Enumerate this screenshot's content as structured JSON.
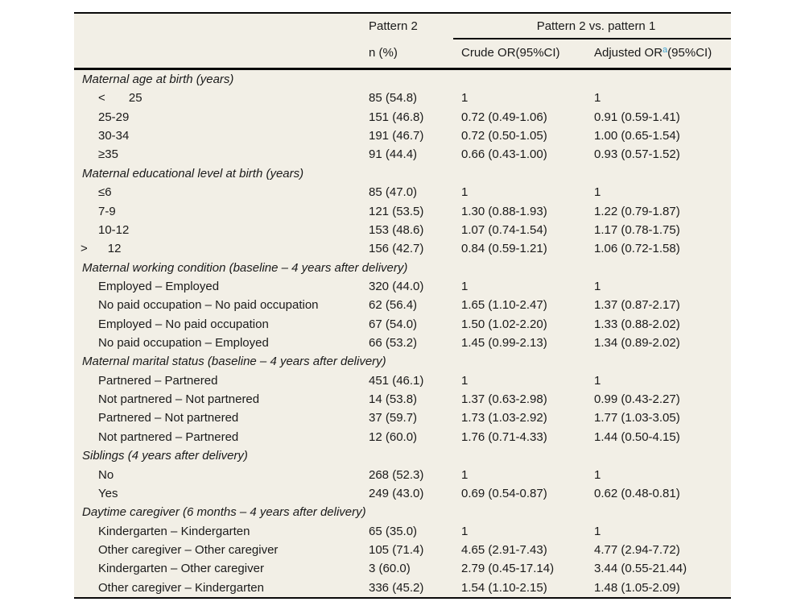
{
  "table": {
    "header": {
      "pattern2": "Pattern 2",
      "comparison": "Pattern 2 vs. pattern 1",
      "sub_n": "n (%)",
      "sub_crude": "Crude OR(95%CI)",
      "sub_adjusted_pre": "Adjusted OR",
      "sub_adjusted_sup": "a",
      "sub_adjusted_post": "(95%CI)"
    },
    "colors": {
      "table_background": "#f2efe6",
      "page_background": "#ffffff",
      "rule_color": "#0a0a0a",
      "superscript_accent": "#3ea2cf"
    },
    "sections": [
      {
        "title": "Maternal age at birth (years)",
        "rows": [
          {
            "label": "<       25",
            "n": "85 (54.8)",
            "crude": "1",
            "adjusted": "1"
          },
          {
            "label": "25-29",
            "n": "151 (46.8)",
            "crude": "0.72 (0.49-1.06)",
            "adjusted": "0.91 (0.59-1.41)"
          },
          {
            "label": "30-34",
            "n": "191 (46.7)",
            "crude": "0.72 (0.50-1.05)",
            "adjusted": "1.00 (0.65-1.54)"
          },
          {
            "label": "≥35",
            "n": "91 (44.4)",
            "crude": "0.66 (0.43-1.00)",
            "adjusted": "0.93 (0.57-1.52)"
          }
        ]
      },
      {
        "title": "Maternal educational level at birth (years)",
        "rows": [
          {
            "label": "≤6",
            "n": "85 (47.0)",
            "crude": "1",
            "adjusted": "1"
          },
          {
            "label": "7-9",
            "n": "121 (53.5)",
            "crude": "1.30 (0.88-1.93)",
            "adjusted": "1.22 (0.79-1.87)"
          },
          {
            "label": "10-12",
            "n": "153 (48.6)",
            "crude": "1.07 (0.74-1.54)",
            "adjusted": "1.17 (0.78-1.75)"
          },
          {
            "label": ">      12",
            "flush": true,
            "n": "156 (42.7)",
            "crude": "0.84 (0.59-1.21)",
            "adjusted": "1.06 (0.72-1.58)"
          }
        ]
      },
      {
        "title": "Maternal working condition (baseline – 4 years after delivery)",
        "rows": [
          {
            "label": "Employed – Employed",
            "n": "320 (44.0)",
            "crude": "1",
            "adjusted": "1"
          },
          {
            "label": "No paid occupation – No paid occupation",
            "n": "62 (56.4)",
            "crude": "1.65 (1.10-2.47)",
            "adjusted": "1.37 (0.87-2.17)"
          },
          {
            "label": "Employed – No paid occupation",
            "n": "67 (54.0)",
            "crude": "1.50 (1.02-2.20)",
            "adjusted": "1.33 (0.88-2.02)"
          },
          {
            "label": "No paid occupation – Employed",
            "n": "66 (53.2)",
            "crude": "1.45 (0.99-2.13)",
            "adjusted": "1.34 (0.89-2.02)"
          }
        ]
      },
      {
        "title": "Maternal marital status (baseline – 4 years after delivery)",
        "rows": [
          {
            "label": "Partnered – Partnered",
            "n": "451 (46.1)",
            "crude": "1",
            "adjusted": "1"
          },
          {
            "label": "Not partnered – Not partnered",
            "n": "14 (53.8)",
            "crude": "1.37 (0.63-2.98)",
            "adjusted": "0.99 (0.43-2.27)"
          },
          {
            "label": "Partnered – Not partnered",
            "n": "37 (59.7)",
            "crude": "1.73 (1.03-2.92)",
            "adjusted": "1.77 (1.03-3.05)"
          },
          {
            "label": "Not partnered – Partnered",
            "n": "12 (60.0)",
            "crude": "1.76 (0.71-4.33)",
            "adjusted": "1.44 (0.50-4.15)"
          }
        ]
      },
      {
        "title": "Siblings (4 years after delivery)",
        "rows": [
          {
            "label": "No",
            "n": "268 (52.3)",
            "crude": "1",
            "adjusted": "1"
          },
          {
            "label": "Yes",
            "n": "249 (43.0)",
            "crude": "0.69 (0.54-0.87)",
            "adjusted": "0.62 (0.48-0.81)"
          }
        ]
      },
      {
        "title": "Daytime caregiver (6 months – 4 years after delivery)",
        "rows": [
          {
            "label": "Kindergarten – Kindergarten",
            "n": "65 (35.0)",
            "crude": "1",
            "adjusted": "1"
          },
          {
            "label": "Other caregiver – Other caregiver",
            "n": "105 (71.4)",
            "crude": "4.65 (2.91-7.43)",
            "adjusted": "4.77 (2.94-7.72)"
          },
          {
            "label": "Kindergarten – Other caregiver",
            "n": "3 (60.0)",
            "crude": "2.79 (0.45-17.14)",
            "adjusted": "3.44 (0.55-21.44)"
          },
          {
            "label": "Other caregiver – Kindergarten",
            "n": "336 (45.2)",
            "crude": "1.54 (1.10-2.15)",
            "adjusted": "1.48 (1.05-2.09)"
          }
        ]
      }
    ]
  }
}
